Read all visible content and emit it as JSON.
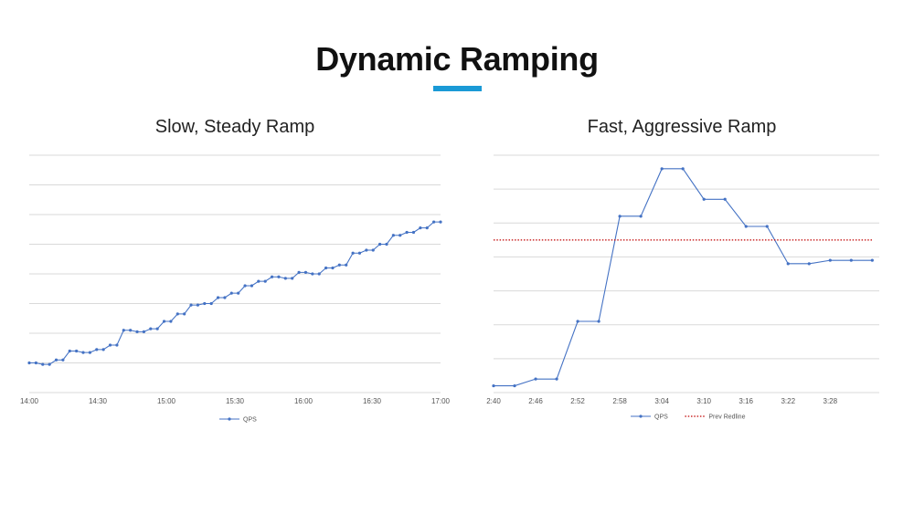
{
  "header": {
    "title": "Dynamic Ramping",
    "accent_color": "#1a9ad6"
  },
  "chart_data": [
    {
      "type": "line",
      "title": "Slow, Steady Ramp",
      "xlabel": "",
      "ylabel": "",
      "x_tick_labels": [
        "14:00",
        "14:30",
        "15:00",
        "15:30",
        "16:00",
        "16:30",
        "17:00"
      ],
      "xlim_minutes": [
        0,
        180
      ],
      "ylim": [
        0,
        8
      ],
      "grid": true,
      "legend": "bottom",
      "series": [
        {
          "name": "QPS",
          "color": "#4472c4",
          "values": [
            1.0,
            1.0,
            0.95,
            0.95,
            1.1,
            1.1,
            1.4,
            1.4,
            1.35,
            1.35,
            1.45,
            1.45,
            1.6,
            1.6,
            2.1,
            2.1,
            2.05,
            2.05,
            2.15,
            2.15,
            2.4,
            2.4,
            2.65,
            2.65,
            2.95,
            2.95,
            3.0,
            3.0,
            3.2,
            3.2,
            3.35,
            3.35,
            3.6,
            3.6,
            3.75,
            3.75,
            3.9,
            3.9,
            3.85,
            3.85,
            4.05,
            4.05,
            4.0,
            4.0,
            4.2,
            4.2,
            4.3,
            4.3,
            4.7,
            4.7,
            4.8,
            4.8,
            5.0,
            5.0,
            5.3,
            5.3,
            5.4,
            5.4,
            5.55,
            5.55,
            5.75,
            5.75
          ]
        }
      ]
    },
    {
      "type": "line",
      "title": "Fast, Aggressive Ramp",
      "xlabel": "",
      "ylabel": "",
      "x_tick_labels": [
        "2:40",
        "2:46",
        "2:52",
        "2:58",
        "3:04",
        "3:10",
        "3:16",
        "3:22",
        "3:28"
      ],
      "xlim_minutes": [
        160,
        215
      ],
      "ylim": [
        0,
        7
      ],
      "grid": true,
      "legend": "bottom",
      "x": [
        160,
        163,
        166,
        169,
        172,
        175,
        178,
        181,
        184,
        187,
        190,
        193,
        196,
        199,
        202,
        205,
        208,
        211,
        214
      ],
      "series": [
        {
          "name": "QPS",
          "color": "#4472c4",
          "values": [
            0.2,
            0.2,
            0.4,
            0.4,
            2.1,
            2.1,
            5.2,
            5.2,
            6.6,
            6.6,
            5.7,
            5.7,
            4.9,
            4.9,
            3.8,
            3.8,
            3.9,
            3.9,
            3.9
          ]
        },
        {
          "name": "Prev Redline",
          "color": "#c00000",
          "style": "dotted",
          "constant": 4.5
        }
      ]
    }
  ]
}
